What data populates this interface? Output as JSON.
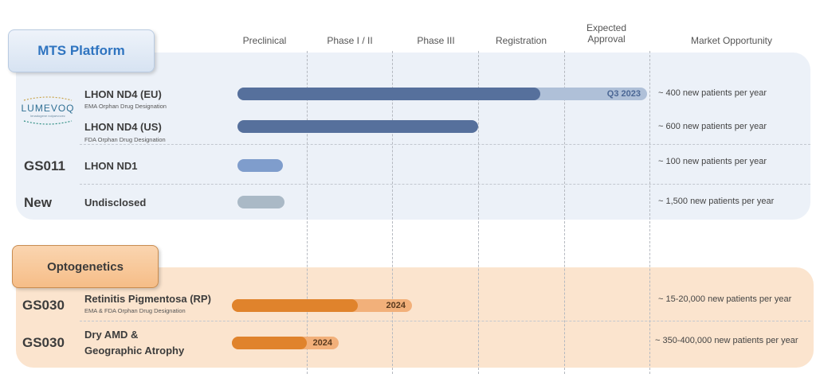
{
  "colors": {
    "mts_panel": "#ecf1f8",
    "opt_panel": "#fbe4ce",
    "mts_bar_dark": "#56709c",
    "mts_bar_light": "#afc0d8",
    "mts_bar_mid": "#7f9dcc",
    "mts_bar_grey": "#aab9c6",
    "opt_bar_dark": "#e0832c",
    "opt_bar_light": "#f2b07a",
    "mts_title": "#2f74c0"
  },
  "phases": [
    "Preclinical",
    "Phase I / II",
    "Phase III",
    "Registration"
  ],
  "expected_approval": [
    "Expected",
    "Approval"
  ],
  "market_header": "Market Opportunity",
  "mts": {
    "title": "MTS Platform",
    "logo_text": "LUMEVOQ",
    "rows": [
      {
        "code": "",
        "name": "LHON ND4 (EU)",
        "designation": "EMA Orphan Drug Designation",
        "bar_label": "Q3 2023",
        "market": "~ 400 new patients per year"
      },
      {
        "code": "",
        "name": "LHON ND4 (US)",
        "designation": "FDA Orphan Drug Designation",
        "bar_label": "",
        "market": "~ 600 new patients per year"
      },
      {
        "code": "GS011",
        "name": "LHON ND1",
        "designation": "",
        "bar_label": "",
        "market": "~ 100 new patients per year"
      },
      {
        "code": "New",
        "name": "Undisclosed",
        "designation": "",
        "bar_label": "",
        "market": "~ 1,500 new patients per year"
      }
    ]
  },
  "opto": {
    "title": "Optogenetics",
    "rows": [
      {
        "code": "GS030",
        "name": "Retinitis Pigmentosa (RP)",
        "designation": "EMA & FDA Orphan Drug Designation",
        "bar_label": "2024",
        "market": "~ 15-20,000 new patients per year"
      },
      {
        "code": "GS030",
        "name_line1": "Dry AMD &",
        "name_line2": "Geographic Atrophy",
        "bar_label": "2024",
        "market": "~ 350-400,000 new patients per year"
      }
    ]
  }
}
